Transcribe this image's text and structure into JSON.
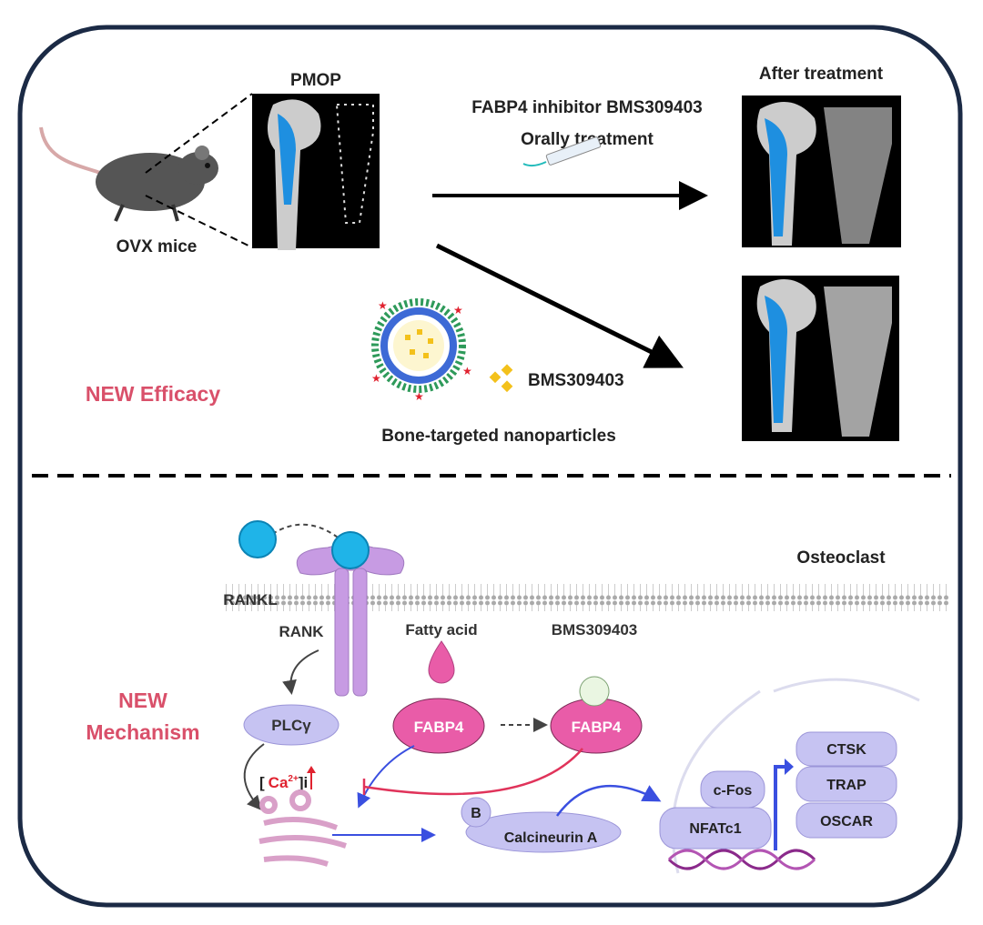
{
  "top": {
    "pmop": "PMOP",
    "after_treatment": "After treatment",
    "inhibitor": "FABP4 inhibitor BMS309403",
    "oral": "Orally treatment",
    "ovx": "OVX mice",
    "new_efficacy": "NEW Efficacy",
    "drug": "BMS309403",
    "nanoparticles": "Bone-targeted nanoparticles"
  },
  "bottom": {
    "osteoclast": "Osteoclast",
    "rankl": "RANKL",
    "rank": "RANK",
    "fatty_acid": "Fatty acid",
    "bms": "BMS309403",
    "new": "NEW",
    "mechanism": "Mechanism",
    "plc": "PLCγ",
    "fabp4_a": "FABP4",
    "fabp4_b": "FABP4",
    "ca_open": "[",
    "ca": "Ca",
    "ca_sup": "2+",
    "ca_close": "]i",
    "b": "B",
    "calcineurin": "Calcineurin A",
    "cfos": "c-Fos",
    "nfatc1": "NFATc1",
    "ctsk": "CTSK",
    "trap": "TRAP",
    "oscar": "OSCAR"
  },
  "colors": {
    "border": "#1b2a45",
    "accent": "#d9506a",
    "fabp4": "#e95ca8",
    "protein": "#c6c3f2",
    "rank": "#c79be3",
    "ligand": "#1fb4e8",
    "activation": "#3a4fe0",
    "inhibition": "#e0335a"
  }
}
